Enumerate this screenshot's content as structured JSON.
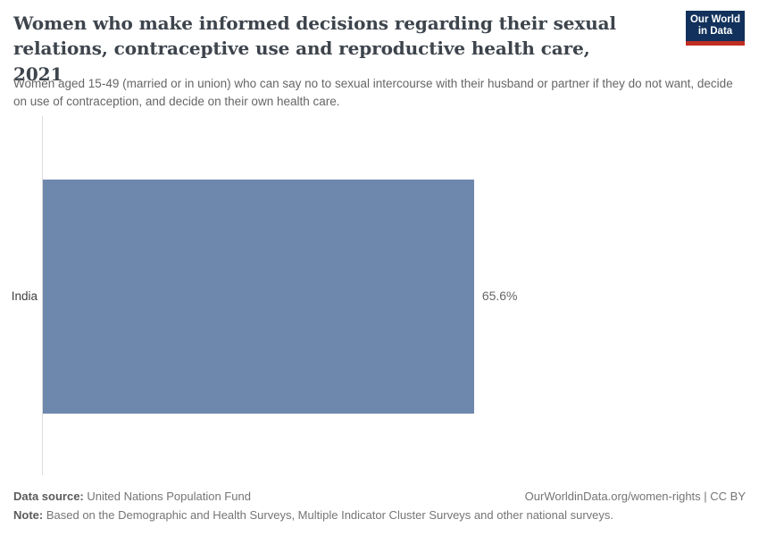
{
  "header": {
    "title": "Women who make informed decisions regarding their sexual relations, contraceptive use and reproductive health care, 2021",
    "subtitle": "Women aged 15-49 (married or in union) who can say no to sexual intercourse with their husband or partner if they do not want, decide on use of contraception, and decide on their own health care.",
    "logo": {
      "line1": "Our World",
      "line2": "in Data",
      "bg_color": "#12315c",
      "accent_color": "#bf2e21"
    }
  },
  "chart_data": {
    "type": "bar",
    "orientation": "horizontal",
    "title": "Women who make informed decisions regarding their sexual relations, contraceptive use and reproductive health care, 2021",
    "categories": [
      "India"
    ],
    "values": [
      65.6
    ],
    "value_labels": [
      "65.6%"
    ],
    "unit": "%",
    "xlim": [
      0,
      100
    ],
    "grid": false,
    "legend": "none",
    "bar_color": "#6e87ad",
    "axis_line_color": "#dcdcdc"
  },
  "footer": {
    "data_source_label": "Data source:",
    "data_source_value": "United Nations Population Fund",
    "citation": "OurWorldinData.org/women-rights | CC BY",
    "note_label": "Note:",
    "note_value": "Based on the Demographic and Health Surveys, Multiple Indicator Cluster Surveys and other national surveys."
  }
}
